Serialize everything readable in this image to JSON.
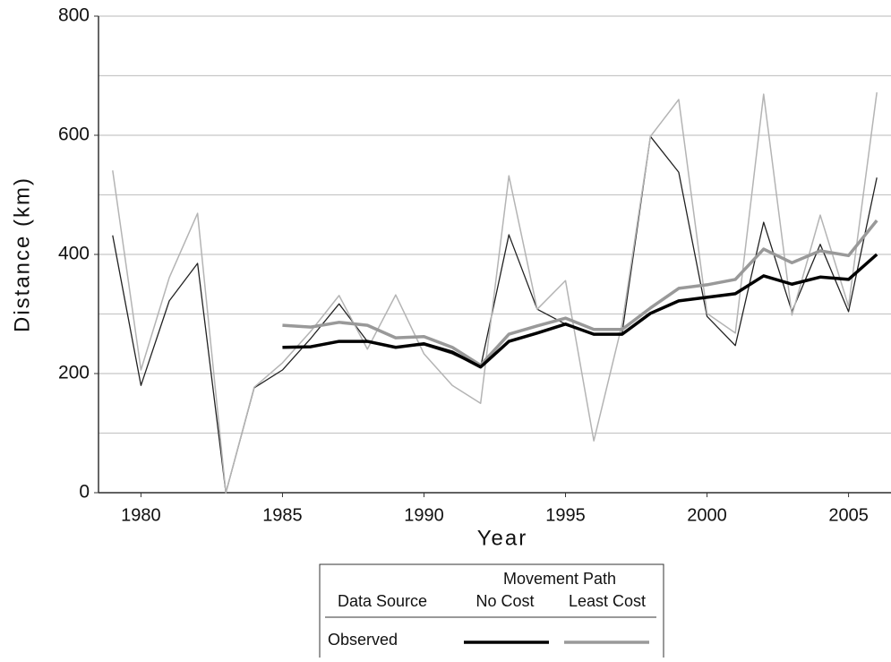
{
  "chart_data": {
    "type": "line",
    "y_label": "Distance (km)",
    "x_label": "Year",
    "xlim": [
      1978.5,
      2006.5
    ],
    "xticks": [
      1980,
      1985,
      1990,
      1995,
      2000,
      2005
    ],
    "ylim": [
      0,
      800
    ],
    "yticks": [
      0,
      200,
      400,
      600,
      800
    ],
    "minor_yticks": [
      100,
      300,
      500,
      700
    ],
    "grid": true,
    "legend": {
      "group_title": "Movement Path",
      "row_header": "Data Source"
    },
    "series": [
      {
        "name": "No Cost",
        "source": "Observed",
        "color": "#000000",
        "width": 3.5,
        "x": [
          1985,
          1986,
          1987,
          1988,
          1989,
          1990,
          1991,
          1992,
          1993,
          1994,
          1995,
          1996,
          1997,
          1998,
          1999,
          2000,
          2001,
          2002,
          2003,
          2004,
          2005,
          2006
        ],
        "values": [
          244,
          245,
          254,
          254,
          244,
          250,
          236,
          211,
          254,
          268,
          283,
          266,
          266,
          301,
          322,
          328,
          334,
          364,
          350,
          362,
          358,
          400
        ]
      },
      {
        "name": "Least Cost",
        "source": "Observed",
        "color": "#999999",
        "width": 3.5,
        "x": [
          1985,
          1986,
          1987,
          1988,
          1989,
          1990,
          1991,
          1992,
          1993,
          1994,
          1995,
          1996,
          1997,
          1998,
          1999,
          2000,
          2001,
          2002,
          2003,
          2004,
          2005,
          2006
        ],
        "values": [
          281,
          278,
          286,
          281,
          260,
          262,
          244,
          214,
          266,
          280,
          293,
          274,
          274,
          310,
          343,
          349,
          358,
          409,
          386,
          406,
          398,
          457
        ]
      },
      {
        "color": "#222222",
        "width": 1.3,
        "x": [
          1979,
          1980,
          1981,
          1982,
          1983,
          1984,
          1985,
          1986,
          1987,
          1988,
          1989,
          1990,
          1991,
          1992,
          1993,
          1994,
          1995,
          1996,
          1997,
          1998,
          1999,
          2000,
          2001,
          2002,
          2003,
          2004,
          2005,
          2006
        ],
        "values": [
          432,
          180,
          322,
          385,
          0,
          176,
          206,
          259,
          317,
          254,
          244,
          248,
          233,
          211,
          433,
          308,
          283,
          265,
          268,
          598,
          538,
          296,
          247,
          454,
          304,
          417,
          304,
          529
        ]
      },
      {
        "color": "#b4b4b4",
        "width": 1.5,
        "x": [
          1979,
          1980,
          1981,
          1982,
          1983,
          1984,
          1985,
          1986,
          1987,
          1988,
          1989,
          1990,
          1991,
          1992,
          1993,
          1994,
          1995,
          1996,
          1997,
          1998,
          1999,
          2000,
          2001,
          2002,
          2003,
          2004,
          2005,
          2006
        ],
        "values": [
          541,
          206,
          361,
          469,
          0,
          177,
          218,
          271,
          331,
          241,
          332,
          233,
          180,
          150,
          532,
          308,
          356,
          87,
          283,
          598,
          660,
          301,
          268,
          669,
          298,
          466,
          313,
          672
        ]
      }
    ]
  }
}
